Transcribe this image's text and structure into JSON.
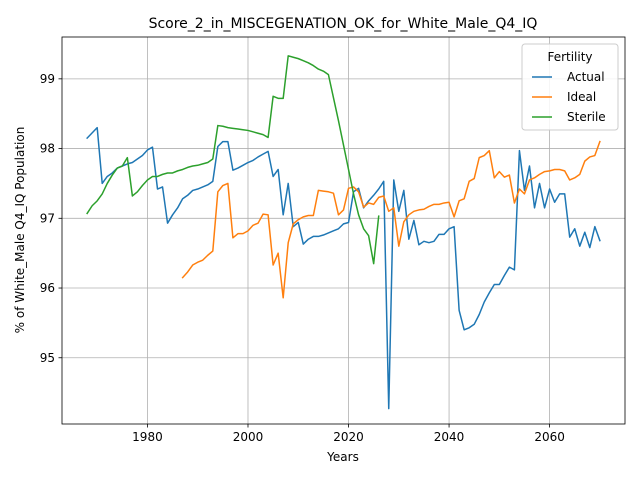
{
  "chart_data": {
    "type": "line",
    "title": "Score_2_in_MISCEGENATION_OK_for_White_Male_Q4_IQ",
    "xlabel": "Years",
    "ylabel": "% of White_Male Q4_IQ Population",
    "xlim": [
      1963,
      2075
    ],
    "ylim": [
      94.05,
      99.6
    ],
    "xticks": [
      1980,
      2000,
      2020,
      2040,
      2060
    ],
    "yticks": [
      95,
      96,
      97,
      98,
      99
    ],
    "grid": true,
    "legend": {
      "title": "Fertility",
      "placement": "top-right"
    },
    "series": [
      {
        "name": "Actual",
        "color": "#1f77b4",
        "points": [
          [
            1968,
            98.15
          ],
          [
            1970,
            98.3
          ],
          [
            1971,
            97.5
          ],
          [
            1972,
            97.6
          ],
          [
            1973,
            97.65
          ],
          [
            1974,
            97.72
          ],
          [
            1975,
            97.75
          ],
          [
            1976,
            97.78
          ],
          [
            1977,
            97.8
          ],
          [
            1978,
            97.85
          ],
          [
            1979,
            97.9
          ],
          [
            1980,
            97.98
          ],
          [
            1981,
            98.02
          ],
          [
            1982,
            97.42
          ],
          [
            1983,
            97.45
          ],
          [
            1984,
            96.93
          ],
          [
            1985,
            97.05
          ],
          [
            1986,
            97.15
          ],
          [
            1987,
            97.28
          ],
          [
            1988,
            97.33
          ],
          [
            1989,
            97.4
          ],
          [
            1990,
            97.42
          ],
          [
            1991,
            97.45
          ],
          [
            1992,
            97.48
          ],
          [
            1993,
            97.53
          ],
          [
            1994,
            98.03
          ],
          [
            1995,
            98.1
          ],
          [
            1996,
            98.1
          ],
          [
            1997,
            97.69
          ],
          [
            1998,
            97.72
          ],
          [
            1999,
            97.76
          ],
          [
            2000,
            97.8
          ],
          [
            2001,
            97.83
          ],
          [
            2002,
            97.88
          ],
          [
            2003,
            97.92
          ],
          [
            2004,
            97.96
          ],
          [
            2005,
            97.6
          ],
          [
            2006,
            97.7
          ],
          [
            2007,
            97.05
          ],
          [
            2008,
            97.5
          ],
          [
            2009,
            96.88
          ],
          [
            2010,
            96.94
          ],
          [
            2011,
            96.63
          ],
          [
            2012,
            96.7
          ],
          [
            2013,
            96.74
          ],
          [
            2014,
            96.74
          ],
          [
            2015,
            96.76
          ],
          [
            2016,
            96.79
          ],
          [
            2017,
            96.82
          ],
          [
            2018,
            96.85
          ],
          [
            2019,
            96.92
          ],
          [
            2020,
            96.94
          ],
          [
            2021,
            97.38
          ],
          [
            2022,
            97.43
          ],
          [
            2023,
            97.15
          ],
          [
            2024,
            97.25
          ],
          [
            2025,
            97.33
          ],
          [
            2026,
            97.42
          ],
          [
            2027,
            97.53
          ],
          [
            2028,
            94.27
          ],
          [
            2029,
            97.55
          ],
          [
            2030,
            97.1
          ],
          [
            2031,
            97.4
          ],
          [
            2032,
            96.7
          ],
          [
            2033,
            96.97
          ],
          [
            2034,
            96.62
          ],
          [
            2035,
            96.67
          ],
          [
            2036,
            96.65
          ],
          [
            2037,
            96.67
          ],
          [
            2038,
            96.77
          ],
          [
            2039,
            96.77
          ],
          [
            2040,
            96.85
          ],
          [
            2041,
            96.88
          ],
          [
            2042,
            95.68
          ],
          [
            2043,
            95.4
          ],
          [
            2044,
            95.43
          ],
          [
            2045,
            95.48
          ],
          [
            2046,
            95.62
          ],
          [
            2047,
            95.8
          ],
          [
            2048,
            95.93
          ],
          [
            2049,
            96.05
          ],
          [
            2050,
            96.05
          ],
          [
            2051,
            96.18
          ],
          [
            2052,
            96.3
          ],
          [
            2053,
            96.26
          ],
          [
            2054,
            97.97
          ],
          [
            2055,
            97.4
          ],
          [
            2056,
            97.75
          ],
          [
            2057,
            97.15
          ],
          [
            2058,
            97.5
          ],
          [
            2059,
            97.15
          ],
          [
            2060,
            97.42
          ],
          [
            2061,
            97.23
          ],
          [
            2062,
            97.35
          ],
          [
            2063,
            97.35
          ],
          [
            2064,
            96.73
          ],
          [
            2065,
            96.85
          ],
          [
            2066,
            96.6
          ],
          [
            2067,
            96.8
          ],
          [
            2068,
            96.58
          ],
          [
            2069,
            96.88
          ],
          [
            2070,
            96.68
          ]
        ]
      },
      {
        "name": "Ideal",
        "color": "#ff7f0e",
        "points": [
          [
            1987,
            96.15
          ],
          [
            1988,
            96.23
          ],
          [
            1989,
            96.33
          ],
          [
            1990,
            96.37
          ],
          [
            1991,
            96.4
          ],
          [
            1992,
            96.47
          ],
          [
            1993,
            96.53
          ],
          [
            1994,
            97.38
          ],
          [
            1995,
            97.47
          ],
          [
            1996,
            97.5
          ],
          [
            1997,
            96.72
          ],
          [
            1998,
            96.78
          ],
          [
            1999,
            96.78
          ],
          [
            2000,
            96.82
          ],
          [
            2001,
            96.9
          ],
          [
            2002,
            96.93
          ],
          [
            2003,
            97.06
          ],
          [
            2004,
            97.05
          ],
          [
            2005,
            96.33
          ],
          [
            2006,
            96.5
          ],
          [
            2007,
            95.86
          ],
          [
            2008,
            96.65
          ],
          [
            2009,
            96.92
          ],
          [
            2010,
            96.98
          ],
          [
            2011,
            97.02
          ],
          [
            2012,
            97.04
          ],
          [
            2013,
            97.04
          ],
          [
            2014,
            97.4
          ],
          [
            2015,
            97.39
          ],
          [
            2016,
            97.38
          ],
          [
            2017,
            97.36
          ],
          [
            2018,
            97.05
          ],
          [
            2019,
            97.12
          ],
          [
            2020,
            97.43
          ],
          [
            2021,
            97.45
          ],
          [
            2022,
            97.38
          ],
          [
            2023,
            97.16
          ],
          [
            2024,
            97.22
          ],
          [
            2025,
            97.2
          ],
          [
            2026,
            97.3
          ],
          [
            2027,
            97.32
          ],
          [
            2028,
            97.1
          ],
          [
            2029,
            97.15
          ],
          [
            2030,
            96.6
          ],
          [
            2031,
            96.95
          ],
          [
            2032,
            97.05
          ],
          [
            2033,
            97.1
          ],
          [
            2034,
            97.12
          ],
          [
            2035,
            97.13
          ],
          [
            2036,
            97.17
          ],
          [
            2037,
            97.2
          ],
          [
            2038,
            97.2
          ],
          [
            2039,
            97.22
          ],
          [
            2040,
            97.23
          ],
          [
            2041,
            97.02
          ],
          [
            2042,
            97.25
          ],
          [
            2043,
            97.28
          ],
          [
            2044,
            97.53
          ],
          [
            2045,
            97.57
          ],
          [
            2046,
            97.87
          ],
          [
            2047,
            97.9
          ],
          [
            2048,
            97.97
          ],
          [
            2049,
            97.58
          ],
          [
            2050,
            97.67
          ],
          [
            2051,
            97.59
          ],
          [
            2052,
            97.62
          ],
          [
            2053,
            97.22
          ],
          [
            2054,
            97.42
          ],
          [
            2055,
            97.35
          ],
          [
            2056,
            97.55
          ],
          [
            2057,
            97.58
          ],
          [
            2058,
            97.63
          ],
          [
            2059,
            97.67
          ],
          [
            2060,
            97.68
          ],
          [
            2061,
            97.7
          ],
          [
            2062,
            97.7
          ],
          [
            2063,
            97.68
          ],
          [
            2064,
            97.55
          ],
          [
            2065,
            97.58
          ],
          [
            2066,
            97.63
          ],
          [
            2067,
            97.82
          ],
          [
            2068,
            97.88
          ],
          [
            2069,
            97.9
          ],
          [
            2070,
            98.1
          ]
        ]
      },
      {
        "name": "Sterile",
        "color": "#2ca02c",
        "points": [
          [
            1968,
            97.07
          ],
          [
            1969,
            97.18
          ],
          [
            1970,
            97.25
          ],
          [
            1971,
            97.35
          ],
          [
            1972,
            97.5
          ],
          [
            1973,
            97.62
          ],
          [
            1974,
            97.72
          ],
          [
            1975,
            97.75
          ],
          [
            1976,
            97.87
          ],
          [
            1977,
            97.32
          ],
          [
            1978,
            97.38
          ],
          [
            1979,
            97.47
          ],
          [
            1980,
            97.55
          ],
          [
            1981,
            97.6
          ],
          [
            1982,
            97.6
          ],
          [
            1983,
            97.63
          ],
          [
            1984,
            97.65
          ],
          [
            1985,
            97.65
          ],
          [
            1986,
            97.68
          ],
          [
            1987,
            97.7
          ],
          [
            1988,
            97.73
          ],
          [
            1989,
            97.75
          ],
          [
            1990,
            97.76
          ],
          [
            1991,
            97.78
          ],
          [
            1992,
            97.8
          ],
          [
            1993,
            97.85
          ],
          [
            1994,
            98.33
          ],
          [
            1995,
            98.32
          ],
          [
            1996,
            98.3
          ],
          [
            1997,
            98.29
          ],
          [
            1998,
            98.28
          ],
          [
            1999,
            98.27
          ],
          [
            2000,
            98.26
          ],
          [
            2001,
            98.24
          ],
          [
            2002,
            98.22
          ],
          [
            2003,
            98.2
          ],
          [
            2004,
            98.16
          ],
          [
            2005,
            98.75
          ],
          [
            2006,
            98.72
          ],
          [
            2007,
            98.72
          ],
          [
            2008,
            99.33
          ],
          [
            2009,
            99.31
          ],
          [
            2010,
            99.29
          ],
          [
            2011,
            99.26
          ],
          [
            2012,
            99.23
          ],
          [
            2013,
            99.19
          ],
          [
            2014,
            99.14
          ],
          [
            2015,
            99.11
          ],
          [
            2016,
            99.06
          ],
          [
            2017,
            98.73
          ],
          [
            2018,
            98.4
          ],
          [
            2019,
            98.05
          ],
          [
            2020,
            97.7
          ],
          [
            2021,
            97.35
          ],
          [
            2022,
            97.05
          ],
          [
            2023,
            96.85
          ],
          [
            2024,
            96.75
          ],
          [
            2025,
            96.35
          ],
          [
            2026,
            97.03
          ]
        ]
      }
    ]
  }
}
